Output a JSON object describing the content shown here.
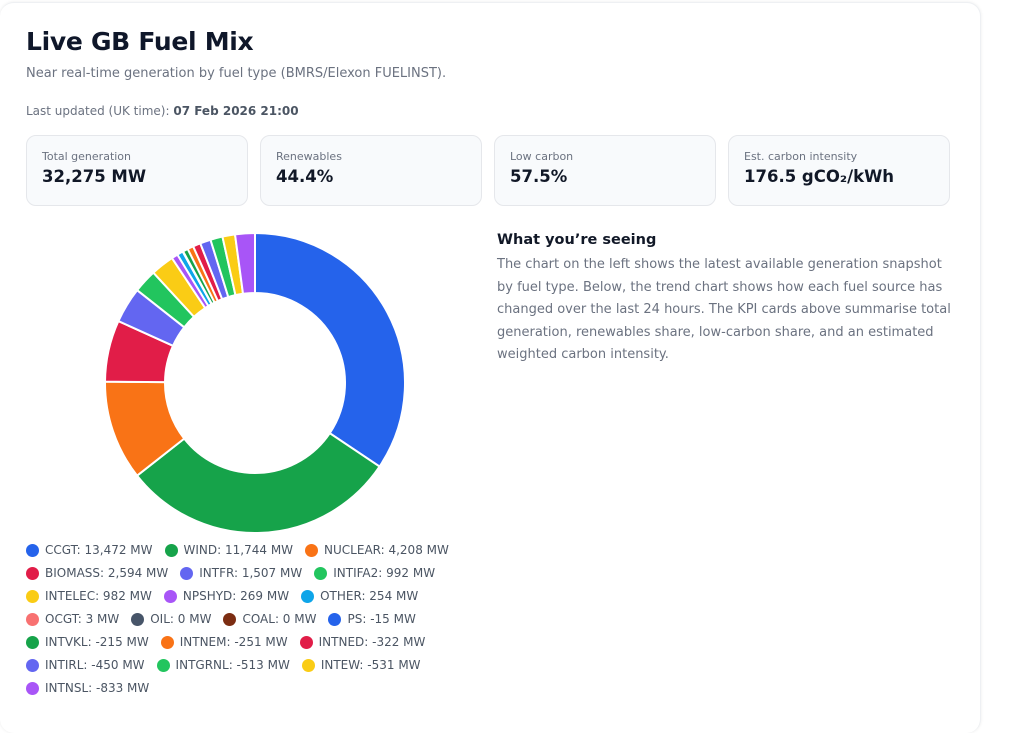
{
  "header": {
    "title": "Live GB Fuel Mix",
    "subtitle": "Near real-time generation by fuel type (BMRS/Elexon FUELINST).",
    "updated_label": "Last updated (UK time):",
    "updated_value": "07 Feb 2026 21:00"
  },
  "kpis": [
    {
      "label": "Total generation",
      "value": "32,275 MW"
    },
    {
      "label": "Renewables",
      "value": "44.4%"
    },
    {
      "label": "Low carbon",
      "value": "57.5%"
    },
    {
      "label": "Est. carbon intensity",
      "value": "176.5 gCO₂/kWh"
    }
  ],
  "info": {
    "heading": "What you’re seeing",
    "body": "The chart on the left shows the latest available generation snapshot by fuel type. Below, the trend chart shows how each fuel source has changed over the last 24 hours. The KPI cards above summarise total generation, renewables share, low-carbon share, and an estimated weighted carbon intensity."
  },
  "chart_data": {
    "type": "pie",
    "variant": "donut",
    "title": "",
    "unit": "MW",
    "slice_basis": "absolute value",
    "start": "top",
    "direction": "clockwise",
    "legend_position": "bottom",
    "categories": [
      "CCGT",
      "WIND",
      "NUCLEAR",
      "BIOMASS",
      "INTFR",
      "INTIFA2",
      "INTELEC",
      "NPSHYD",
      "OTHER",
      "OCGT",
      "OIL",
      "COAL",
      "PS",
      "INTVKL",
      "INTNEM",
      "INTNED",
      "INTIRL",
      "INTGRNL",
      "INTEW",
      "INTNSL"
    ],
    "values": [
      13472,
      11744,
      4208,
      2594,
      1507,
      992,
      982,
      269,
      254,
      3,
      0,
      0,
      -15,
      -215,
      -251,
      -322,
      -450,
      -513,
      -531,
      -833
    ],
    "colors": [
      "#2563eb",
      "#16a34a",
      "#f97316",
      "#e11d48",
      "#6366f1",
      "#22c55e",
      "#facc15",
      "#a855f7",
      "#0ea5e9",
      "#f87171",
      "#475569",
      "#7c2d12",
      "#2563eb",
      "#16a34a",
      "#f97316",
      "#e11d48",
      "#6366f1",
      "#22c55e",
      "#facc15",
      "#a855f7"
    ],
    "legend_labels": [
      "CCGT: 13,472 MW",
      "WIND: 11,744 MW",
      "NUCLEAR: 4,208 MW",
      "BIOMASS: 2,594 MW",
      "INTFR: 1,507 MW",
      "INTIFA2: 992 MW",
      "INTELEC: 982 MW",
      "NPSHYD: 269 MW",
      "OTHER: 254 MW",
      "OCGT: 3 MW",
      "OIL: 0 MW",
      "COAL: 0 MW",
      "PS: -15 MW",
      "INTVKL: -215 MW",
      "INTNEM: -251 MW",
      "INTNED: -322 MW",
      "INTIRL: -450 MW",
      "INTGRNL: -513 MW",
      "INTEW: -531 MW",
      "INTNSL: -833 MW"
    ]
  }
}
